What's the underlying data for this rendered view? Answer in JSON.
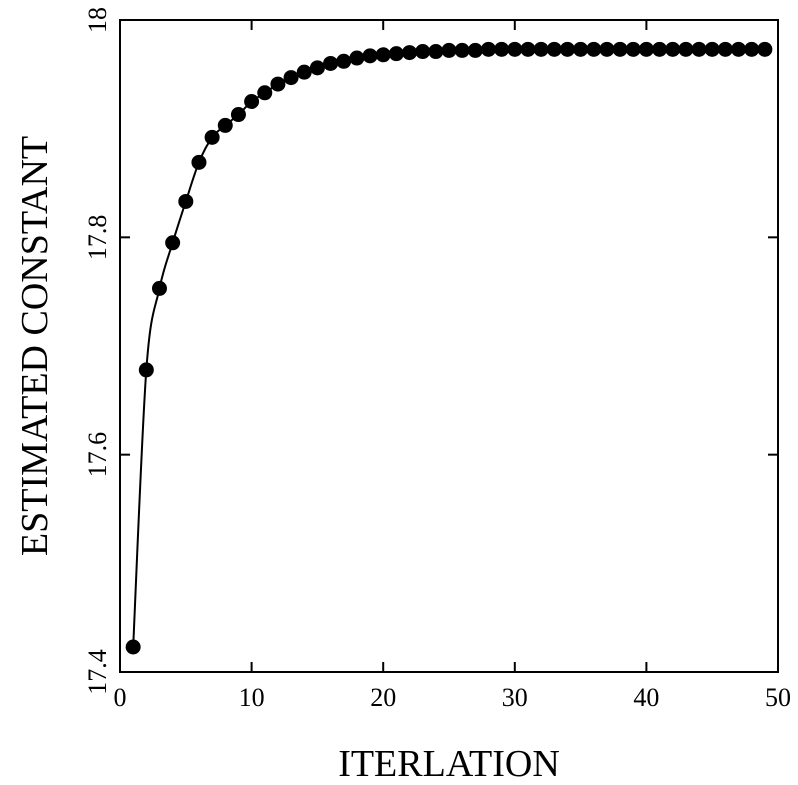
{
  "chart_data": {
    "type": "line",
    "title": "",
    "xlabel": "ITERLATION",
    "ylabel": "ESTIMATED CONSTANT",
    "xlim": [
      0,
      50
    ],
    "ylim": [
      17.4,
      18
    ],
    "xticks": [
      0,
      10,
      20,
      30,
      40,
      50
    ],
    "xtick_labels": [
      "0",
      "10",
      "20",
      "30",
      "40",
      "50"
    ],
    "yticks": [
      17.4,
      17.6,
      17.8,
      18
    ],
    "ytick_labels": [
      "17.4",
      "17.6",
      "17.8",
      "18"
    ],
    "grid": false,
    "marker": "filled-circle",
    "color": "#000000",
    "series": [
      {
        "x": [
          1,
          2,
          3,
          4,
          5,
          6,
          7,
          8,
          9,
          10,
          11,
          12,
          13,
          14,
          15,
          16,
          17,
          18,
          19,
          20,
          21,
          22,
          23,
          24,
          25,
          26,
          27,
          28,
          29,
          30,
          31,
          32,
          33,
          34,
          35,
          36,
          37,
          38,
          39,
          40,
          41,
          42,
          43,
          44,
          45,
          46,
          47,
          48,
          49
        ],
        "y": [
          17.423,
          17.678,
          17.753,
          17.795,
          17.833,
          17.869,
          17.892,
          17.903,
          17.913,
          17.925,
          17.933,
          17.941,
          17.947,
          17.952,
          17.956,
          17.96,
          17.962,
          17.965,
          17.967,
          17.968,
          17.969,
          17.97,
          17.971,
          17.971,
          17.972,
          17.972,
          17.972,
          17.973,
          17.973,
          17.973,
          17.973,
          17.973,
          17.973,
          17.973,
          17.973,
          17.973,
          17.973,
          17.973,
          17.973,
          17.973,
          17.973,
          17.973,
          17.973,
          17.973,
          17.973,
          17.973,
          17.973,
          17.973,
          17.973
        ]
      }
    ]
  }
}
